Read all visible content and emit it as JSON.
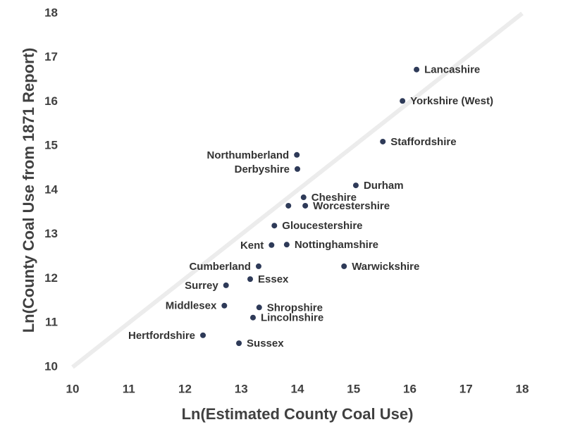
{
  "chart_data": {
    "type": "scatter",
    "x_label": "Ln(Estimated County Coal Use)",
    "y_label": "Ln(County Coal Use from 1871 Report)",
    "labels": [
      "Lancashire",
      "Yorkshire (West)",
      "Staffordshire",
      "Northumberland",
      "Derbyshire",
      "Durham",
      "Cheshire",
      "Worcestershire",
      null,
      "Gloucestershire",
      "Kent",
      "Nottinghamshire",
      "Cumberland",
      "Warwickshire",
      "Essex",
      "Surrey",
      "Middlesex",
      "Shropshire",
      "Lincolnshire",
      "Hertfordshire",
      "Sussex"
    ],
    "x": [
      16.12,
      15.87,
      15.52,
      13.99,
      14.0,
      15.04,
      14.11,
      14.14,
      13.84,
      13.59,
      13.54,
      13.81,
      13.31,
      14.83,
      13.16,
      12.73,
      12.7,
      13.32,
      13.21,
      12.32,
      12.96
    ],
    "y": [
      16.73,
      16.02,
      15.1,
      14.8,
      14.48,
      14.11,
      13.84,
      13.65,
      13.65,
      13.2,
      12.76,
      12.77,
      12.28,
      12.28,
      11.99,
      11.85,
      11.39,
      11.35,
      11.12,
      10.72,
      10.54
    ],
    "color": "#2e3a58",
    "xlim": [
      10,
      18
    ],
    "ylim": [
      10,
      18
    ],
    "xticks": [
      10,
      11,
      12,
      13,
      14,
      15,
      16,
      17,
      18
    ],
    "yticks": [
      10,
      11,
      12,
      13,
      14,
      15,
      16,
      17,
      18
    ],
    "diagonal": true
  }
}
